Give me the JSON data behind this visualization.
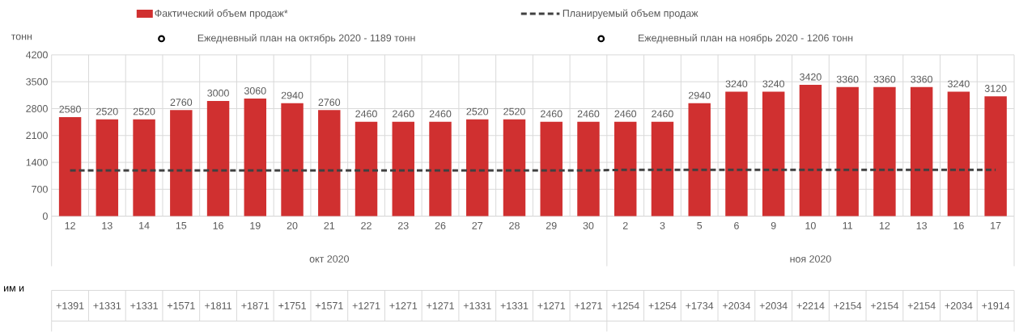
{
  "chart_data": {
    "type": "bar",
    "ylabel": "тонн",
    "categories": [
      "12",
      "13",
      "14",
      "15",
      "16",
      "19",
      "20",
      "21",
      "22",
      "23",
      "26",
      "27",
      "28",
      "29",
      "30",
      "2",
      "3",
      "5",
      "6",
      "9",
      "10",
      "11",
      "12",
      "13",
      "16",
      "17"
    ],
    "series": [
      {
        "name": "Фактический объем продаж*",
        "color": "#d03030",
        "values": [
          2580,
          2520,
          2520,
          2760,
          3000,
          3060,
          2940,
          2760,
          2460,
          2460,
          2460,
          2520,
          2520,
          2460,
          2460,
          2460,
          2460,
          2940,
          3240,
          3240,
          3420,
          3360,
          3360,
          3360,
          3240,
          3120
        ],
        "value_labels": [
          "2580",
          "2520",
          "2520",
          "2760",
          "3000",
          "3060",
          "2940",
          "2760",
          "2460",
          "2460",
          "2460",
          "2520",
          "2520",
          "2460",
          "2460",
          "2460",
          "2460",
          "2940",
          "3240",
          "3240",
          "3420",
          "3360",
          "3360",
          "3360",
          "3240",
          "3120"
        ]
      },
      {
        "name": "Планируемый объем продаж",
        "type": "line",
        "line_style": "dashed",
        "color": "#404040",
        "values": [
          1189,
          1189,
          1189,
          1189,
          1189,
          1189,
          1189,
          1189,
          1189,
          1189,
          1189,
          1189,
          1189,
          1189,
          1189,
          1206,
          1206,
          1206,
          1206,
          1206,
          1206,
          1206,
          1206,
          1206,
          1206,
          1206
        ]
      }
    ],
    "ylim": [
      0,
      4200
    ],
    "yticks": [
      0,
      700,
      1400,
      2100,
      2800,
      3500,
      4200
    ],
    "grid": true,
    "legend": "top",
    "annotations": [
      "Ежедневный план на октябрь 2020 - 1189 тонн",
      "Ежедневный план на ноябрь 2020 - 1206 тонн",
      "окт 2020",
      "ноя 2020",
      "им и",
      "+1391",
      "+1331",
      "+1331",
      "+1571",
      "+1811",
      "+1871",
      "+1751",
      "+1571",
      "+1271",
      "+1271",
      "+1271",
      "+1331",
      "+1331",
      "+1271",
      "+1271",
      "+1254",
      "+1254",
      "+1734",
      "+2034",
      "+2034",
      "+2214",
      "+2154",
      "+2154",
      "+2154",
      "+2034",
      "+1914"
    ]
  }
}
